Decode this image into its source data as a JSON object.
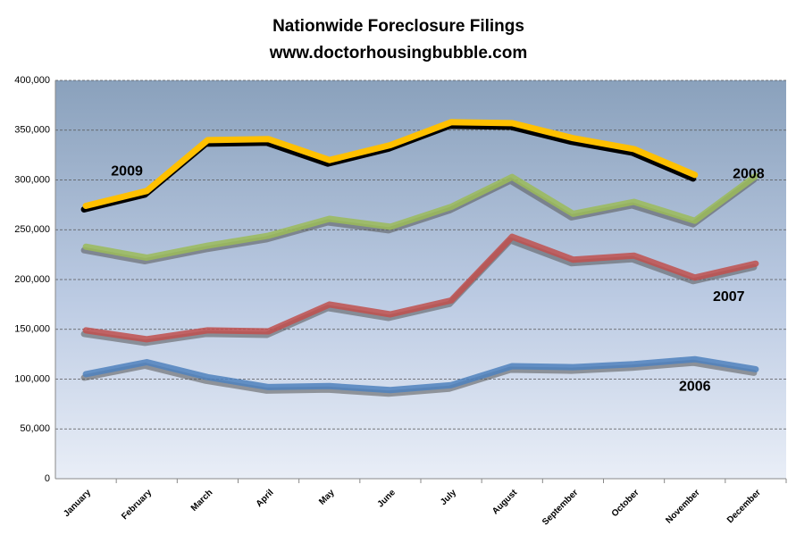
{
  "chart_data": {
    "type": "line",
    "title": "Nationwide Foreclosure Filings",
    "subtitle": "www.doctorhousingbubble.com",
    "categories": [
      "January",
      "February",
      "March",
      "April",
      "May",
      "June",
      "July",
      "August",
      "September",
      "October",
      "November",
      "December"
    ],
    "series": [
      {
        "name": "2009",
        "color": "#ffc000",
        "values": [
          274000,
          289000,
          340000,
          341000,
          320000,
          335000,
          358000,
          357000,
          342000,
          331000,
          305000,
          null
        ]
      },
      {
        "name": "2008",
        "color": "#9bbb59",
        "values": [
          233000,
          222000,
          234000,
          244000,
          261000,
          253000,
          273000,
          303000,
          266000,
          278000,
          259000,
          304000
        ]
      },
      {
        "name": "2007",
        "color": "#c0504d",
        "values": [
          149000,
          140000,
          149000,
          148000,
          175000,
          165000,
          179000,
          243000,
          220000,
          224000,
          202000,
          216000
        ]
      },
      {
        "name": "2006",
        "color": "#4f81bd",
        "values": [
          105000,
          117000,
          102000,
          92000,
          93000,
          89000,
          94000,
          113000,
          112000,
          115000,
          120000,
          110000
        ]
      }
    ],
    "ylim": [
      0,
      400000
    ],
    "yticks": [
      0,
      {
        "value": 50000,
        "label": "50,000"
      },
      {
        "value": 100000,
        "label": "100,000"
      },
      {
        "value": 150000,
        "label": "150,000"
      },
      {
        "value": 200000,
        "label": "200,000"
      },
      {
        "value": 250000,
        "label": "250,000"
      },
      {
        "value": 300000,
        "label": "300,000"
      },
      {
        "value": 350000,
        "label": "350,000"
      },
      {
        "value": 400000,
        "label": "400,000"
      }
    ],
    "grid": true
  }
}
